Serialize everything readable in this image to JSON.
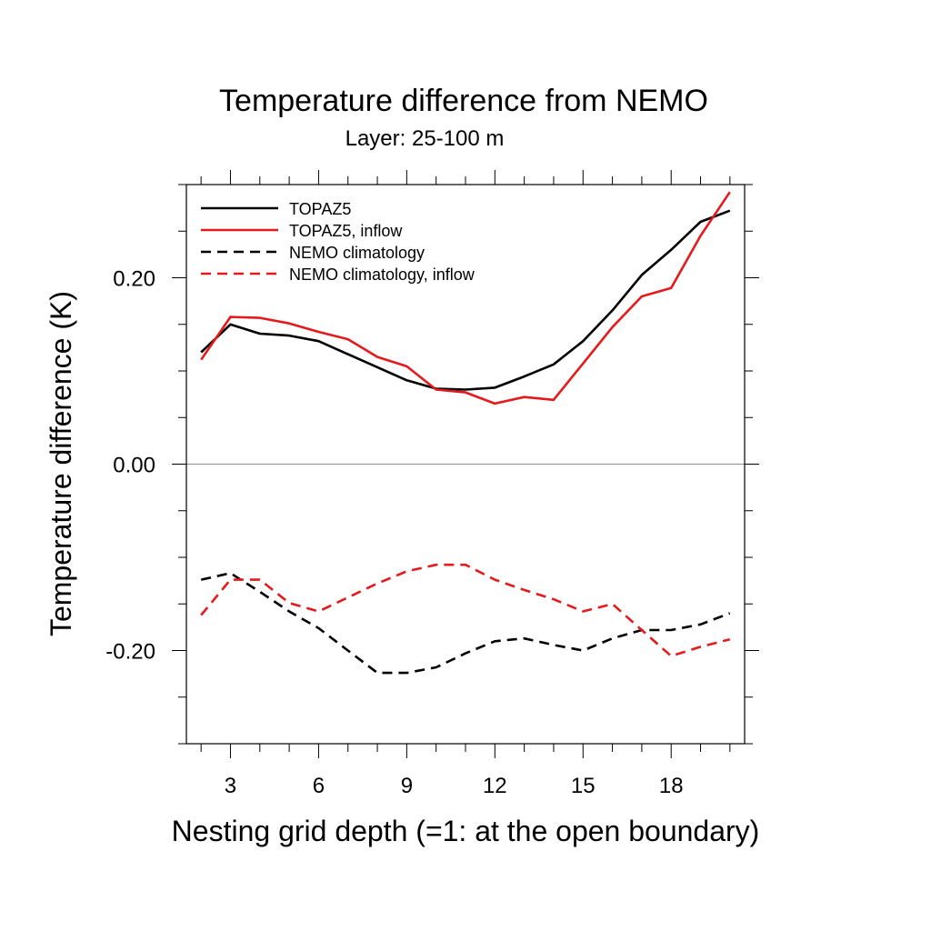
{
  "chart_data": {
    "type": "line",
    "title": "Temperature difference from NEMO",
    "subtitle": "Layer: 25-100 m",
    "xlabel": "Nesting grid depth (=1: at the open boundary)",
    "ylabel": "Temperature difference (K)",
    "xlim": [
      1.5,
      20.5
    ],
    "ylim": [
      -0.3,
      0.3
    ],
    "xticks": [
      3,
      6,
      9,
      12,
      15,
      18
    ],
    "xtick_labels": [
      "3",
      "6",
      "9",
      "12",
      "15",
      "18"
    ],
    "yticks": [
      0.2,
      0.0,
      -0.2
    ],
    "ytick_labels": [
      "0.20",
      "0.00",
      "-0.20"
    ],
    "zero_line": true,
    "legend_position": "top-left",
    "series": [
      {
        "name": "TOPAZ5",
        "color": "#000000",
        "dash": "solid",
        "x": [
          2,
          3,
          4,
          5,
          6,
          7,
          8,
          9,
          10,
          11,
          12,
          13,
          14,
          15,
          16,
          17,
          18,
          19,
          20
        ],
        "values": [
          0.12,
          0.15,
          0.14,
          0.138,
          0.132,
          0.118,
          0.104,
          0.09,
          0.081,
          0.08,
          0.082,
          0.094,
          0.107,
          0.132,
          0.165,
          0.203,
          0.23,
          0.26,
          0.272
        ]
      },
      {
        "name": "TOPAZ5, inflow",
        "color": "#e41a1c",
        "dash": "solid",
        "x": [
          2,
          3,
          4,
          5,
          6,
          7,
          8,
          9,
          10,
          11,
          12,
          13,
          14,
          15,
          16,
          17,
          18,
          19,
          20
        ],
        "values": [
          0.112,
          0.158,
          0.157,
          0.151,
          0.142,
          0.134,
          0.115,
          0.105,
          0.08,
          0.077,
          0.065,
          0.072,
          0.069,
          0.108,
          0.147,
          0.18,
          0.189,
          0.245,
          0.292
        ]
      },
      {
        "name": "NEMO climatology",
        "color": "#000000",
        "dash": "dashed",
        "x": [
          2,
          3,
          4,
          5,
          6,
          7,
          8,
          9,
          10,
          11,
          12,
          13,
          14,
          15,
          16,
          17,
          18,
          19,
          20
        ],
        "values": [
          -0.124,
          -0.117,
          -0.137,
          -0.158,
          -0.176,
          -0.2,
          -0.224,
          -0.224,
          -0.218,
          -0.203,
          -0.19,
          -0.187,
          -0.194,
          -0.2,
          -0.187,
          -0.178,
          -0.178,
          -0.172,
          -0.16
        ]
      },
      {
        "name": "NEMO climatology, inflow",
        "color": "#e41a1c",
        "dash": "dashed",
        "x": [
          2,
          3,
          4,
          5,
          6,
          7,
          8,
          9,
          10,
          11,
          12,
          13,
          14,
          15,
          16,
          17,
          18,
          19,
          20
        ],
        "values": [
          -0.162,
          -0.124,
          -0.124,
          -0.149,
          -0.158,
          -0.143,
          -0.128,
          -0.115,
          -0.108,
          -0.108,
          -0.124,
          -0.135,
          -0.145,
          -0.158,
          -0.15,
          -0.178,
          -0.206,
          -0.196,
          -0.188
        ]
      }
    ]
  }
}
